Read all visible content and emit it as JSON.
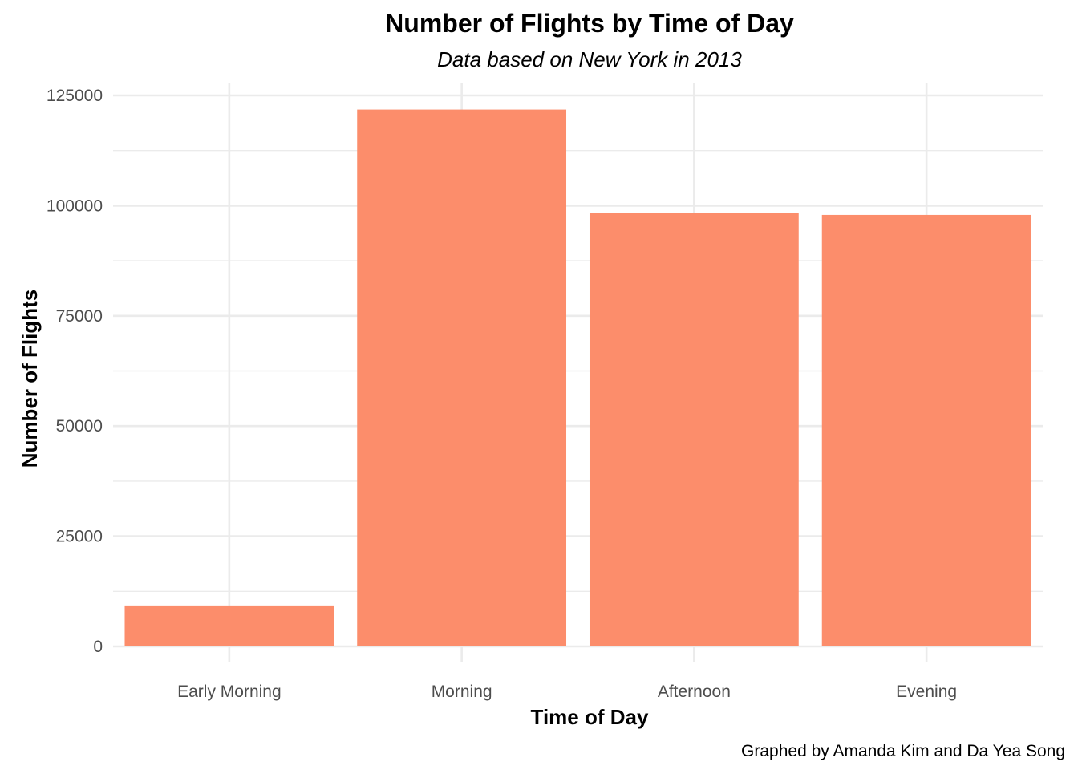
{
  "chart_data": {
    "type": "bar",
    "title": "Number of Flights by Time of Day",
    "subtitle": "Data based on New York in 2013",
    "xlabel": "Time of Day",
    "ylabel": "Number of Flights",
    "caption": "Graphed by Amanda Kim and Da Yea Song",
    "categories": [
      "Early Morning",
      "Morning",
      "Afternoon",
      "Evening"
    ],
    "values": [
      9300,
      121800,
      98300,
      97900
    ],
    "ylim": [
      0,
      128000
    ],
    "yticks": [
      0,
      25000,
      50000,
      75000,
      100000,
      125000
    ],
    "ytick_labels": [
      "0",
      "25000",
      "50000",
      "75000",
      "100000",
      "125000"
    ],
    "grid": true,
    "legend": "none",
    "colors": {
      "bar": "#FC8D6B",
      "grid": "#EBEBEB",
      "tick_text": "#4D4D4D",
      "text": "#000000"
    }
  }
}
